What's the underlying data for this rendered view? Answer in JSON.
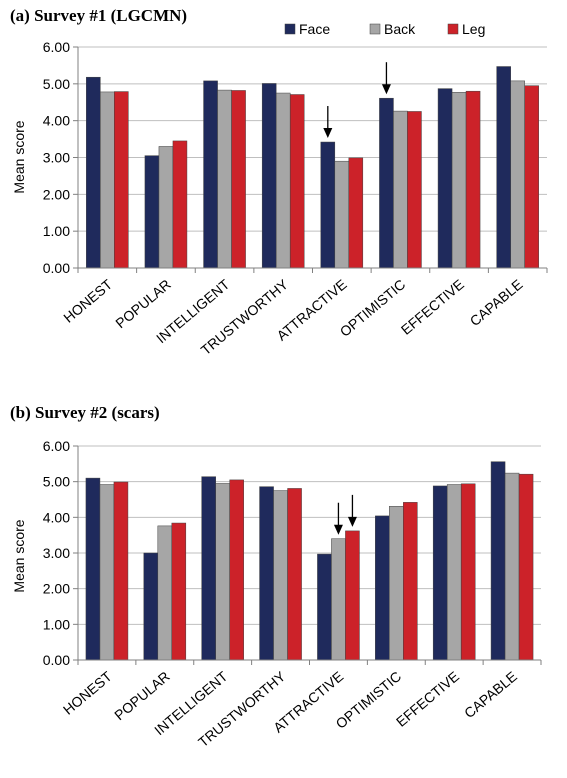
{
  "chart_data": [
    {
      "type": "bar",
      "title": "(a) Survey #1 (LGCMN)",
      "ylabel": "Mean score",
      "xlabel": "",
      "ylim": [
        0,
        6
      ],
      "yticks": [
        "0.00",
        "1.00",
        "2.00",
        "3.00",
        "4.00",
        "5.00",
        "6.00"
      ],
      "grid": true,
      "legend": "top-right",
      "categories": [
        "HONEST",
        "POPULAR",
        "INTELLIGENT",
        "TRUSTWORTHY",
        "ATTRACTIVE",
        "OPTIMISTIC",
        "EFFECTIVE",
        "CAPABLE"
      ],
      "series": [
        {
          "name": "Face",
          "color": "#1f2a5c",
          "values": [
            5.18,
            3.05,
            5.08,
            5.01,
            3.42,
            4.61,
            4.87,
            5.47
          ]
        },
        {
          "name": "Back",
          "color": "#a6a6a6",
          "values": [
            4.78,
            3.3,
            4.83,
            4.75,
            2.9,
            4.26,
            4.77,
            5.08
          ]
        },
        {
          "name": "Leg",
          "color": "#cc2229",
          "values": [
            4.79,
            3.45,
            4.82,
            4.71,
            2.99,
            4.25,
            4.8,
            4.95
          ]
        }
      ],
      "annotations": [
        {
          "type": "arrow",
          "category": "ATTRACTIVE",
          "series": "Face"
        },
        {
          "type": "arrow",
          "category": "OPTIMISTIC",
          "series": "Face"
        }
      ]
    },
    {
      "type": "bar",
      "title": "(b) Survey #2 (scars)",
      "ylabel": "Mean score",
      "xlabel": "",
      "ylim": [
        0,
        6
      ],
      "yticks": [
        "0.00",
        "1.00",
        "2.00",
        "3.00",
        "4.00",
        "5.00",
        "6.00"
      ],
      "grid": true,
      "legend": "none",
      "categories": [
        "HONEST",
        "POPULAR",
        "INTELLIGENT",
        "TRUSTWORTHY",
        "ATTRACTIVE",
        "OPTIMISTIC",
        "EFFECTIVE",
        "CAPABLE"
      ],
      "series": [
        {
          "name": "Face",
          "color": "#1f2a5c",
          "values": [
            5.1,
            3.0,
            5.14,
            4.86,
            2.97,
            4.04,
            4.88,
            5.56
          ]
        },
        {
          "name": "Back",
          "color": "#a6a6a6",
          "values": [
            4.92,
            3.76,
            4.95,
            4.75,
            3.4,
            4.31,
            4.92,
            5.24
          ]
        },
        {
          "name": "Leg",
          "color": "#cc2229",
          "values": [
            4.99,
            3.84,
            5.05,
            4.81,
            3.62,
            4.42,
            4.94,
            5.21
          ]
        }
      ],
      "annotations": [
        {
          "type": "arrow",
          "category": "ATTRACTIVE",
          "series": "Back"
        },
        {
          "type": "arrow",
          "category": "ATTRACTIVE",
          "series": "Leg"
        }
      ]
    }
  ]
}
